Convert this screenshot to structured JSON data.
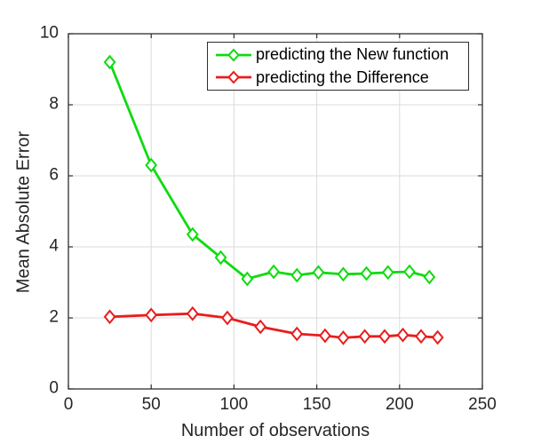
{
  "chart_data": {
    "type": "line",
    "title": "",
    "xlabel": "Number of observations",
    "ylabel": "Mean Absolute Error",
    "xlim": [
      0,
      250
    ],
    "ylim": [
      0,
      10
    ],
    "xticks": [
      0,
      50,
      100,
      150,
      200,
      250
    ],
    "yticks": [
      0,
      2,
      4,
      6,
      8,
      10
    ],
    "grid": true,
    "legend_position": "top-right-inside",
    "axis_color": "#2e2e2e",
    "grid_color": "#dbdbdb",
    "background_color": "#ffffff",
    "series": [
      {
        "name": "predicting the New function",
        "color": "#0fdb0f",
        "marker": "diamond",
        "x": [
          25,
          50,
          75,
          92,
          108,
          124,
          138,
          151,
          166,
          180,
          193,
          206,
          218
        ],
        "y": [
          9.2,
          6.3,
          4.35,
          3.7,
          3.1,
          3.3,
          3.2,
          3.28,
          3.23,
          3.25,
          3.28,
          3.3,
          3.15
        ]
      },
      {
        "name": "predicting the Difference",
        "color": "#e81d1d",
        "marker": "diamond",
        "x": [
          25,
          50,
          75,
          96,
          116,
          138,
          155,
          166,
          179,
          191,
          202,
          213,
          223
        ],
        "y": [
          2.03,
          2.08,
          2.12,
          2.0,
          1.75,
          1.55,
          1.5,
          1.44,
          1.48,
          1.48,
          1.52,
          1.48,
          1.45
        ]
      }
    ]
  }
}
